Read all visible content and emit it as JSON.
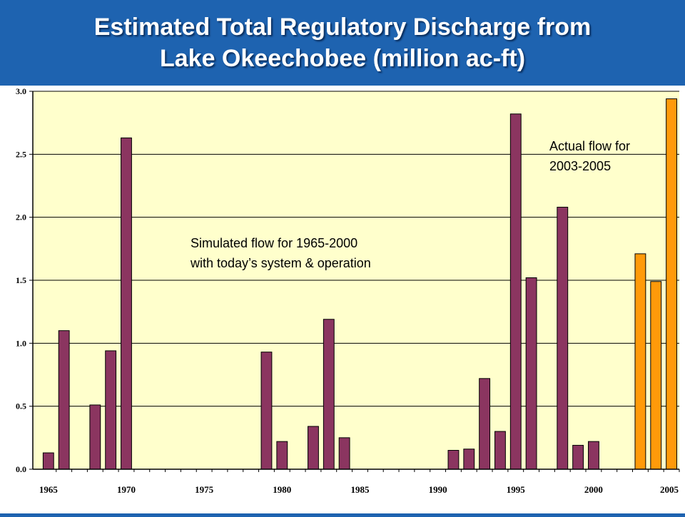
{
  "slide": {
    "title_line1": "Estimated Total Regulatory Discharge from",
    "title_line2": "Lake Okeechobee (million ac-ft)"
  },
  "chart_data": {
    "type": "bar",
    "title": "Estimated Total Regulatory Discharge from Lake Okeechobee (million ac-ft)",
    "xlim": [
      1964,
      2005.5
    ],
    "ylim": [
      0,
      3.0
    ],
    "yticks": [
      "0.0",
      "0.5",
      "1.0",
      "1.5",
      "2.0",
      "2.5",
      "3.0"
    ],
    "xticks": [
      "1965",
      "1970",
      "1975",
      "1980",
      "1985",
      "1990",
      "1995",
      "2000",
      "2005"
    ],
    "grid": "horizontal",
    "colors": {
      "simulated": "#8b3560",
      "actual": "#ff9a0a",
      "plot_bg": "#ffffcc",
      "outer_bg": "#1e63b0"
    },
    "series": [
      {
        "key": "simulated",
        "x": [
          1965,
          1966,
          1967,
          1968,
          1969,
          1970,
          1971,
          1972,
          1973,
          1974,
          1975,
          1976,
          1977,
          1978,
          1979,
          1980,
          1981,
          1982,
          1983,
          1984,
          1985,
          1986,
          1987,
          1988,
          1989,
          1990,
          1991,
          1992,
          1993,
          1994,
          1995,
          1996,
          1997,
          1998,
          1999,
          2000
        ],
        "values": [
          0.13,
          1.1,
          0,
          0.51,
          0.94,
          2.63,
          0,
          0,
          0,
          0,
          0,
          0,
          0,
          0,
          0.93,
          0.22,
          0,
          0.34,
          1.19,
          0.25,
          0,
          0,
          0,
          0,
          0,
          0,
          0.15,
          0.16,
          0.72,
          0.3,
          2.82,
          1.52,
          0,
          2.08,
          0.19,
          0.22
        ]
      },
      {
        "key": "actual",
        "x": [
          2003,
          2004,
          2005
        ],
        "values": [
          1.71,
          1.49,
          2.94
        ]
      }
    ],
    "annotations": [
      {
        "line1": "Simulated flow for 1965-2000",
        "line2": "with today’s system & operation"
      },
      {
        "line1": "Actual flow for",
        "line2": "2003-2005"
      }
    ]
  }
}
